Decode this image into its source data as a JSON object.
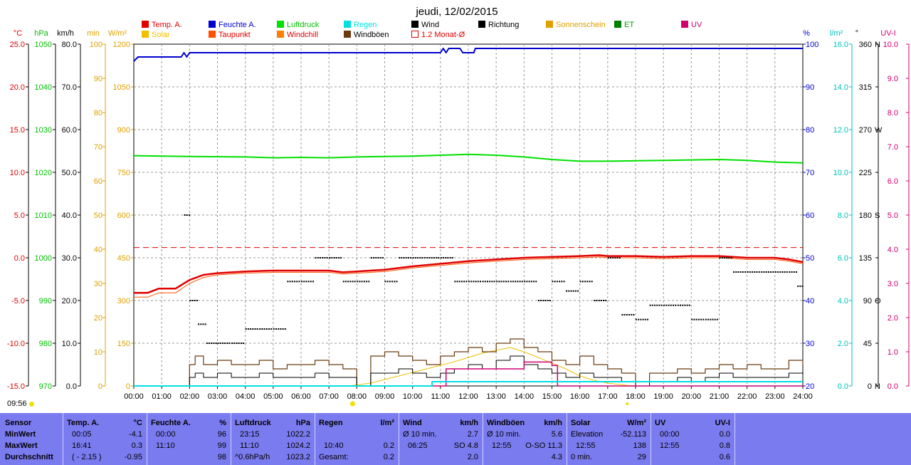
{
  "title": "jeudi, 12/02/2015",
  "current_time": "09:56",
  "colors": {
    "temp": "#e00000",
    "feuchte": "#0000d0",
    "luftdruck": "#00e000",
    "regen": "#00e0e0",
    "wind": "#000000",
    "richtung": "#000000",
    "sonnenschein": "#e0a000",
    "et": "#008000",
    "uv": "#d00070",
    "solar": "#f0c000",
    "taupunkt": "#ff5000",
    "windchill": "#ff8000",
    "windboen": "#6b3a10",
    "monat": "#e00000",
    "panel": "#7b7bf0"
  },
  "legend": [
    {
      "label": "Temp. A.",
      "color": "#e00000",
      "text_color": "#e00000"
    },
    {
      "label": "Feuchte A.",
      "color": "#0000d0",
      "text_color": "#0000d0"
    },
    {
      "label": "Luftdruck",
      "color": "#00e000",
      "text_color": "#00c000"
    },
    {
      "label": "Regen",
      "color": "#00e0e0",
      "text_color": "#00e0e0"
    },
    {
      "label": "Wind",
      "color": "#000000",
      "text_color": "#000000"
    },
    {
      "label": "Richtung",
      "color": "#000000",
      "text_color": "#000000"
    },
    {
      "label": "Sonnenschein",
      "color": "#e0a000",
      "text_color": "#e0a000"
    },
    {
      "label": "ET",
      "color": "#008000",
      "text_color": "#00a000"
    },
    {
      "label": "UV",
      "color": "#d00070",
      "text_color": "#d00070"
    },
    {
      "label": "Solar",
      "color": "#f0c000",
      "text_color": "#f0c000"
    },
    {
      "label": "Taupunkt",
      "color": "#ff5000",
      "text_color": "#e00000"
    },
    {
      "label": "Windchill",
      "color": "#ff8000",
      "text_color": "#e00000"
    },
    {
      "label": "Windböen",
      "color": "#6b3a10",
      "text_color": "#000000"
    },
    {
      "label": "1.2 Monat-Ø",
      "color": "#e00000",
      "text_color": "#e00000",
      "hollow": true
    }
  ],
  "axes": {
    "temp": {
      "unit": "°C",
      "ticks": [
        "25.0",
        "20.0",
        "15.0",
        "10.0",
        "5.0",
        "0.0",
        "-5.0",
        "-10.0",
        "-15.0"
      ],
      "color": "#e00000"
    },
    "hpa": {
      "unit": "hPa",
      "ticks": [
        "1050",
        "1040",
        "1030",
        "1020",
        "1010",
        "1000",
        "990",
        "980",
        "970"
      ],
      "color": "#00c000"
    },
    "kmh": {
      "unit": "km/h",
      "ticks": [
        "80.0",
        "70.0",
        "60.0",
        "50.0",
        "40.0",
        "30.0",
        "20.0",
        "10.0",
        "0.0"
      ],
      "color": "#000000"
    },
    "min": {
      "unit": "min",
      "ticks": [
        "100",
        "90",
        "80",
        "70",
        "60",
        "50",
        "40",
        "30",
        "20",
        "10",
        "0"
      ],
      "color": "#e0a000"
    },
    "wm2": {
      "unit": "W/m²",
      "ticks": [
        "1200",
        "1050",
        "900",
        "750",
        "600",
        "450",
        "300",
        "150",
        "0"
      ],
      "color": "#e0a000"
    },
    "pct": {
      "unit": "%",
      "ticks": [
        "100",
        "90",
        "80",
        "70",
        "60",
        "50",
        "40",
        "30",
        "20"
      ],
      "color": "#0000d0"
    },
    "lm2": {
      "unit": "l/m²",
      "ticks": [
        "16.0",
        "14.0",
        "12.0",
        "10.0",
        "8.0",
        "6.0",
        "4.0",
        "2.0",
        "0.0"
      ],
      "color": "#00c0c0"
    },
    "deg": {
      "unit": "°",
      "ticks": [
        "360",
        "315",
        "270",
        "225",
        "180",
        "135",
        "90",
        "45",
        "0"
      ],
      "dir": [
        "N",
        "",
        "W",
        "",
        "S",
        "",
        "O",
        "",
        "N"
      ],
      "color": "#000000"
    },
    "uvi": {
      "unit": "UV-I",
      "ticks": [
        "10.0",
        "9.0",
        "8.0",
        "7.0",
        "6.0",
        "5.0",
        "4.0",
        "3.0",
        "2.0",
        "1.0",
        "0.0"
      ],
      "color": "#d00070"
    },
    "hours": [
      "00:00",
      "01:00",
      "02:00",
      "03:00",
      "04:00",
      "05:00",
      "06:00",
      "07:00",
      "08:00",
      "09:00",
      "10:00",
      "11:00",
      "12:00",
      "13:00",
      "14:00",
      "15:00",
      "16:00",
      "17:00",
      "18:00",
      "19:00",
      "20:00",
      "21:00",
      "22:00",
      "23:00",
      "24:00"
    ]
  },
  "chart_data": {
    "type": "line",
    "x_unit": "hour",
    "xlim": [
      0,
      24
    ],
    "series": [
      {
        "name": "Feuchte A.",
        "axis": "%",
        "ylim": [
          20,
          100
        ],
        "x": [
          0,
          0.15,
          1.7,
          1.8,
          1.9,
          2.0,
          11.0,
          11.1,
          11.2,
          11.3,
          11.7,
          11.8,
          12.2,
          12.25,
          24
        ],
        "values": [
          96,
          97,
          97,
          98,
          97,
          98,
          98,
          99,
          98,
          99,
          99,
          98,
          98,
          99,
          99
        ]
      },
      {
        "name": "Luftdruck",
        "axis": "hPa",
        "ylim": [
          970,
          1050
        ],
        "x": [
          0,
          2,
          4,
          5,
          6,
          7,
          8,
          9,
          10,
          11,
          12,
          13,
          14,
          15,
          16,
          17,
          18,
          19,
          20,
          21,
          22,
          23,
          24
        ],
        "values": [
          1023.9,
          1023.7,
          1023.6,
          1023.4,
          1023.5,
          1023.4,
          1023.6,
          1023.7,
          1023.8,
          1024.0,
          1024.2,
          1024.0,
          1023.6,
          1023.0,
          1022.6,
          1022.6,
          1022.7,
          1022.8,
          1022.9,
          1023.0,
          1022.8,
          1022.4,
          1022.2
        ]
      },
      {
        "name": "Temp. A.",
        "axis": "°C",
        "ylim": [
          -15,
          25
        ],
        "x": [
          0,
          0.5,
          0.9,
          1.5,
          2.0,
          2.5,
          3,
          4,
          5,
          6,
          7,
          7.5,
          8,
          9,
          10,
          11,
          12,
          13,
          14,
          15,
          16,
          16.7,
          17,
          18,
          19,
          20,
          21,
          22,
          23,
          23.5,
          24
        ],
        "values": [
          -4.1,
          -4.1,
          -3.6,
          -3.6,
          -2.6,
          -2.0,
          -1.8,
          -1.6,
          -1.5,
          -1.5,
          -1.5,
          -1.7,
          -1.6,
          -1.4,
          -1.0,
          -0.7,
          -0.4,
          -0.2,
          0.0,
          0.1,
          0.2,
          0.3,
          0.2,
          0.2,
          0.1,
          0.2,
          0.2,
          0.0,
          0.0,
          -0.2,
          -0.5
        ]
      },
      {
        "name": "Taupunkt",
        "axis": "°C",
        "ylim": [
          -15,
          25
        ],
        "x": [
          0,
          0.5,
          0.9,
          1.5,
          2.0,
          2.5,
          3,
          4,
          5,
          6,
          7,
          7.5,
          8,
          9,
          10,
          11,
          12,
          13,
          14,
          15,
          16,
          16.7,
          17,
          18,
          19,
          20,
          21,
          22,
          23,
          23.5,
          24
        ],
        "values": [
          -4.6,
          -4.6,
          -4.1,
          -4.1,
          -3.0,
          -2.3,
          -2.0,
          -1.8,
          -1.7,
          -1.7,
          -1.7,
          -1.9,
          -1.8,
          -1.6,
          -1.2,
          -0.9,
          -0.6,
          -0.4,
          -0.2,
          -0.1,
          0.0,
          0.1,
          0.0,
          0.0,
          -0.1,
          0.0,
          0.0,
          -0.2,
          -0.2,
          -0.4,
          -0.7
        ]
      },
      {
        "name": "1.2 Monat-Ø",
        "axis": "°C",
        "ylim": [
          -15,
          25
        ],
        "x": [
          0,
          24
        ],
        "values": [
          1.2,
          1.2
        ]
      },
      {
        "name": "Solar",
        "axis": "W/m²",
        "ylim": [
          0,
          1200
        ],
        "x": [
          0,
          7.7,
          8.5,
          9.5,
          10.5,
          11.5,
          12.5,
          13,
          13.5,
          14,
          14.5,
          15,
          15.5,
          16,
          16.5,
          17,
          17.7,
          18,
          24
        ],
        "values": [
          0,
          0,
          10,
          35,
          60,
          85,
          115,
          125,
          135,
          120,
          100,
          80,
          60,
          35,
          20,
          10,
          2,
          0,
          0
        ]
      },
      {
        "name": "Wind",
        "axis": "km/h",
        "ylim": [
          0,
          80
        ],
        "x": [
          0,
          1.9,
          2.0,
          2.2,
          2.5,
          3,
          3.5,
          4,
          4.5,
          5,
          5.5,
          6,
          6.5,
          7,
          7.5,
          8,
          8.5,
          9,
          9.5,
          10,
          10.5,
          11,
          11.5,
          12,
          12.5,
          13,
          13.5,
          14,
          14.5,
          15,
          15.5,
          16,
          16.5,
          17,
          17.5,
          18,
          18.5,
          19,
          19.5,
          20,
          20.5,
          21,
          21.5,
          22,
          22.5,
          23,
          23.5,
          24
        ],
        "values": [
          0,
          0,
          2,
          3,
          2,
          3,
          2,
          2,
          3,
          2,
          2,
          2,
          3,
          2,
          2,
          0,
          3,
          3,
          4,
          3,
          2,
          3,
          4,
          5,
          4,
          6,
          7,
          5,
          4,
          3,
          2,
          3,
          2,
          2,
          1,
          0,
          1,
          1,
          2,
          1,
          2,
          3,
          2,
          2,
          2,
          2,
          3,
          2
        ]
      },
      {
        "name": "Windböen",
        "axis": "km/h",
        "ylim": [
          0,
          80
        ],
        "x": [
          0,
          1.9,
          2.0,
          2.2,
          2.5,
          3,
          3.5,
          4,
          4.5,
          5,
          5.5,
          6,
          6.5,
          7,
          7.5,
          8,
          8.5,
          9,
          9.5,
          10,
          10.5,
          11,
          11.5,
          12,
          12.5,
          13,
          13.5,
          14,
          14.5,
          15,
          15.5,
          16,
          16.5,
          17,
          17.5,
          18,
          18.5,
          19,
          19.5,
          20,
          20.5,
          21,
          21.5,
          22,
          22.5,
          23,
          23.5,
          24
        ],
        "values": [
          0,
          0,
          5,
          7,
          5,
          6,
          5,
          5,
          6,
          4,
          5,
          5,
          6,
          5,
          4,
          0,
          7,
          8,
          7,
          6,
          5,
          7,
          8,
          9,
          8,
          10,
          11,
          9,
          8,
          6,
          5,
          7,
          5,
          4,
          3,
          1,
          3,
          3,
          4,
          3,
          4,
          5,
          4,
          5,
          4,
          4,
          6,
          5
        ]
      },
      {
        "name": "UV",
        "axis": "UV-I",
        "ylim": [
          0,
          10
        ],
        "x": [
          0,
          11,
          11.2,
          13.5,
          14,
          15,
          15.2,
          24
        ],
        "values": [
          0,
          0,
          0.5,
          0.5,
          0.7,
          0.6,
          0,
          0
        ]
      },
      {
        "name": "Regen",
        "axis": "l/m²",
        "ylim": [
          0,
          16
        ],
        "x": [
          0,
          10.65,
          10.7,
          24
        ],
        "values": [
          0,
          0,
          0.2,
          0.2
        ]
      },
      {
        "name": "Richtung",
        "axis": "°",
        "ylim": [
          0,
          360
        ],
        "x": [
          1.8,
          2.0,
          2.3,
          2.6,
          3.0,
          3.5,
          4.0,
          4.5,
          5.0,
          5.5,
          6.0,
          6.5,
          7.0,
          7.5,
          8.0,
          8.5,
          9.0,
          9.5,
          10.0,
          10.5,
          11.0,
          11.5,
          12.0,
          12.5,
          13.0,
          13.5,
          14.0,
          14.5,
          15.0,
          15.5,
          16.0,
          16.5,
          17.0,
          17.5,
          18.0,
          18.5,
          19.0,
          19.5,
          20.0,
          20.5,
          21.0,
          21.5,
          22.0,
          22.5,
          23.0,
          23.5,
          23.8
        ],
        "values": [
          180,
          90,
          65,
          45,
          45,
          45,
          60,
          60,
          60,
          110,
          110,
          135,
          135,
          110,
          110,
          135,
          110,
          135,
          135,
          135,
          135,
          110,
          110,
          110,
          110,
          110,
          110,
          90,
          110,
          100,
          110,
          90,
          135,
          75,
          70,
          85,
          85,
          85,
          70,
          70,
          135,
          120,
          120,
          120,
          120,
          120,
          105
        ]
      }
    ]
  },
  "stats": {
    "header": {
      "sensor": "Sensor",
      "rows": [
        "MinWert",
        "MaxWert",
        "Durchschnitt"
      ]
    },
    "temp": {
      "title": "Temp. A.",
      "unit": "°C",
      "min_time": "00:05",
      "min": "-4.1",
      "max_time": "16:41",
      "max": "0.3",
      "avg_pre": "( - 2.15 )",
      "avg": "-0.95"
    },
    "feuchte": {
      "title": "Feuchte A.",
      "unit": "%",
      "min_time": "00:00",
      "min": "96",
      "max_time": "11:10",
      "max": "99",
      "avg": "98"
    },
    "luftdruck": {
      "title": "Luftdruck",
      "unit": "hPa",
      "min_time": "23:15",
      "min": "1022.2",
      "max_time": "11:10",
      "max": "1024.2",
      "avg_pre": "^0.6hPa/h",
      "avg": "1023.2"
    },
    "regen": {
      "title": "Regen",
      "unit": "l/m²",
      "max_time": "10:40",
      "max": "0.2",
      "avg_pre": "Gesamt:",
      "avg": "0.2"
    },
    "wind": {
      "title": "Wind",
      "unit": "km/h",
      "min_pre": "Ø 10 min.",
      "min": "2.7",
      "max_time": "06:25",
      "max": "SO 4.8",
      "avg": "2.0"
    },
    "windboen": {
      "title": "Windböen",
      "unit": "km/h",
      "min_pre": "Ø 10 min.",
      "min": "5.6",
      "max_time": "12:55",
      "max": "O-SO 11.3",
      "avg": "4.3"
    },
    "solar": {
      "title": "Solar",
      "unit": "W/m²",
      "min_pre": "Elevation",
      "min": "-52.113",
      "max_time": "12:55",
      "max": "138",
      "avg_pre": "0 min.",
      "avg": "29"
    },
    "uv": {
      "title": "UV",
      "unit": "UV-I",
      "min_time": "00:00",
      "min": "0.0",
      "max_time": "12:55",
      "max": "0.8",
      "avg": "0.6"
    }
  }
}
